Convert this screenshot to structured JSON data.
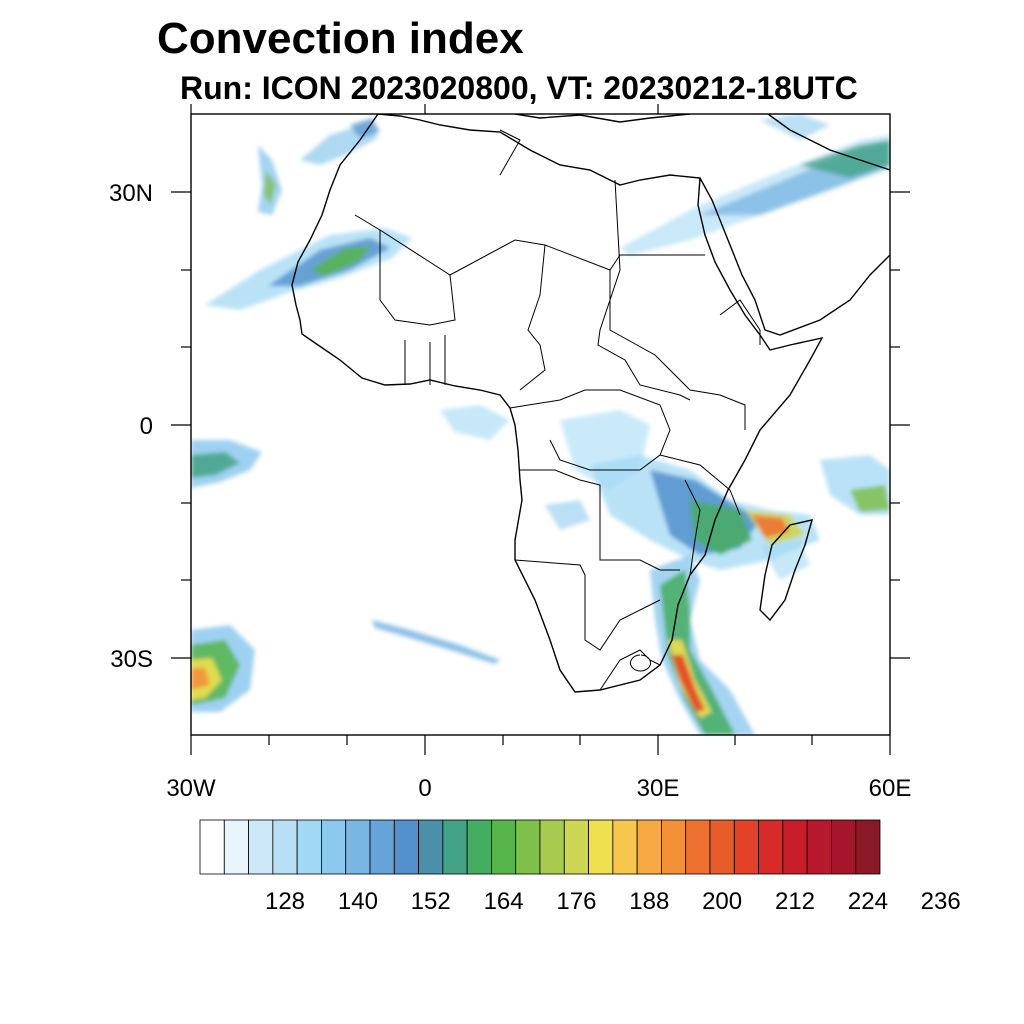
{
  "title": "Convection index",
  "subtitle": "Run: ICON 2023020800,  VT: 20230212-18UTC",
  "map": {
    "projection": "cylindrical equidistant",
    "lon_range_deg": [
      -30,
      60
    ],
    "lat_range_deg": [
      -40,
      40
    ],
    "lat_labels": [
      "30N",
      "0",
      "30S"
    ],
    "lon_labels": [
      "30W",
      "0",
      "30E",
      "60E"
    ],
    "features": [
      "coastlines",
      "country borders"
    ]
  },
  "colorbar": {
    "tick_labels": [
      "128",
      "140",
      "152",
      "164",
      "176",
      "188",
      "200",
      "212",
      "224",
      "236"
    ],
    "colors": [
      "#ffffff",
      "#e8f5fc",
      "#cde9f8",
      "#b7e0f6",
      "#a1d8f4",
      "#8dc9ee",
      "#79b6e3",
      "#65a3d8",
      "#5391cc",
      "#4b8fa8",
      "#44a286",
      "#45ad62",
      "#56b54a",
      "#7fc04d",
      "#a6cb4e",
      "#cdd652",
      "#eee04f",
      "#f7c74d",
      "#f7aa43",
      "#f49037",
      "#ee7130",
      "#e85b2b",
      "#e34228",
      "#d82a28",
      "#c81e2b",
      "#b7182b",
      "#a5162a",
      "#8a1825"
    ]
  }
}
